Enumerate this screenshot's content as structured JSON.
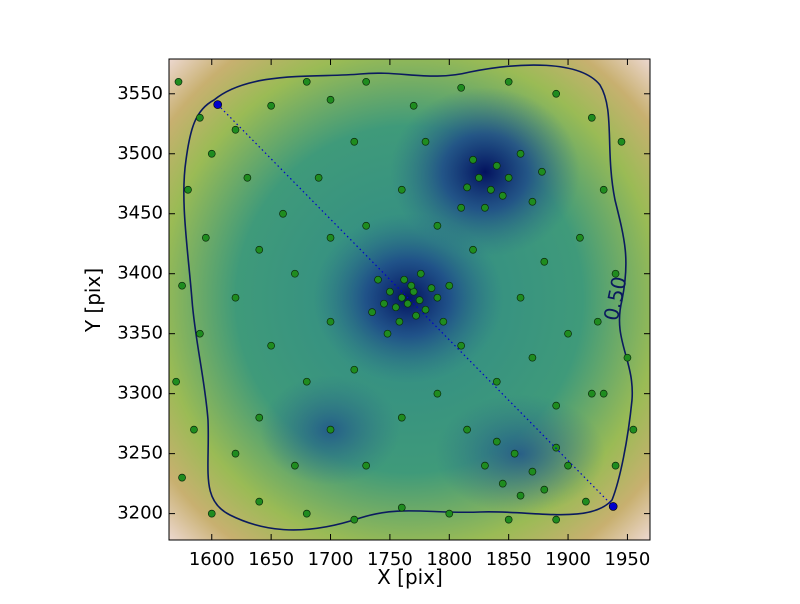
{
  "chart_data": {
    "type": "scatter",
    "xlabel": "X [pix]",
    "ylabel": "Y [pix]",
    "xlim": [
      1564,
      1969
    ],
    "ylim": [
      3178,
      3579
    ],
    "xticks": [
      1600,
      1650,
      1700,
      1750,
      1800,
      1850,
      1900,
      1950
    ],
    "yticks": [
      3200,
      3250,
      3300,
      3350,
      3400,
      3450,
      3500,
      3550
    ],
    "grid": false,
    "contour_label": "0.50",
    "series": [
      {
        "color": "#1f8c1f",
        "x": [
          1760,
          1765,
          1770,
          1775,
          1755,
          1768,
          1780,
          1762,
          1750,
          1772,
          1785,
          1758,
          1745,
          1790,
          1740,
          1776,
          1748,
          1795,
          1735,
          1800,
          1825,
          1835,
          1815,
          1840,
          1850,
          1830,
          1860,
          1845,
          1820,
          1870,
          1878,
          1810,
          1840,
          1855,
          1870,
          1880,
          1860,
          1830,
          1890,
          1900,
          1845,
          1815,
          1572,
          1590,
          1620,
          1650,
          1680,
          1700,
          1730,
          1770,
          1810,
          1850,
          1890,
          1920,
          1945,
          1930,
          1910,
          1940,
          1925,
          1950,
          1930,
          1955,
          1940,
          1915,
          1890,
          1850,
          1800,
          1760,
          1720,
          1680,
          1640,
          1600,
          1575,
          1585,
          1570,
          1590,
          1575,
          1595,
          1580,
          1600,
          1630,
          1660,
          1690,
          1720,
          1700,
          1640,
          1620,
          1650,
          1680,
          1640,
          1620,
          1670,
          1700,
          1730,
          1760,
          1790,
          1720,
          1700,
          1670,
          1730,
          1760,
          1790,
          1780,
          1880,
          1860,
          1900,
          1870,
          1840,
          1890,
          1810,
          1820,
          1920
        ],
        "y": [
          3380,
          3375,
          3385,
          3378,
          3372,
          3390,
          3370,
          3395,
          3385,
          3365,
          3388,
          3360,
          3375,
          3380,
          3395,
          3400,
          3350,
          3360,
          3368,
          3390,
          3480,
          3470,
          3472,
          3490,
          3480,
          3455,
          3500,
          3465,
          3495,
          3460,
          3485,
          3455,
          3260,
          3250,
          3235,
          3220,
          3215,
          3240,
          3255,
          3240,
          3225,
          3270,
          3560,
          3530,
          3520,
          3540,
          3560,
          3545,
          3560,
          3540,
          3555,
          3560,
          3550,
          3530,
          3510,
          3470,
          3430,
          3400,
          3360,
          3330,
          3300,
          3270,
          3240,
          3210,
          3195,
          3195,
          3200,
          3205,
          3195,
          3200,
          3210,
          3200,
          3230,
          3270,
          3310,
          3350,
          3390,
          3430,
          3470,
          3500,
          3480,
          3450,
          3480,
          3510,
          3430,
          3420,
          3380,
          3340,
          3310,
          3280,
          3250,
          3240,
          3270,
          3240,
          3280,
          3300,
          3320,
          3360,
          3400,
          3440,
          3470,
          3440,
          3510,
          3410,
          3380,
          3350,
          3330,
          3310,
          3290,
          3340,
          3420,
          3300
        ]
      },
      {
        "color": "#0000cc",
        "style": "dotted",
        "x": [
          1605,
          1938
        ],
        "y": [
          3541,
          3206
        ]
      }
    ]
  }
}
